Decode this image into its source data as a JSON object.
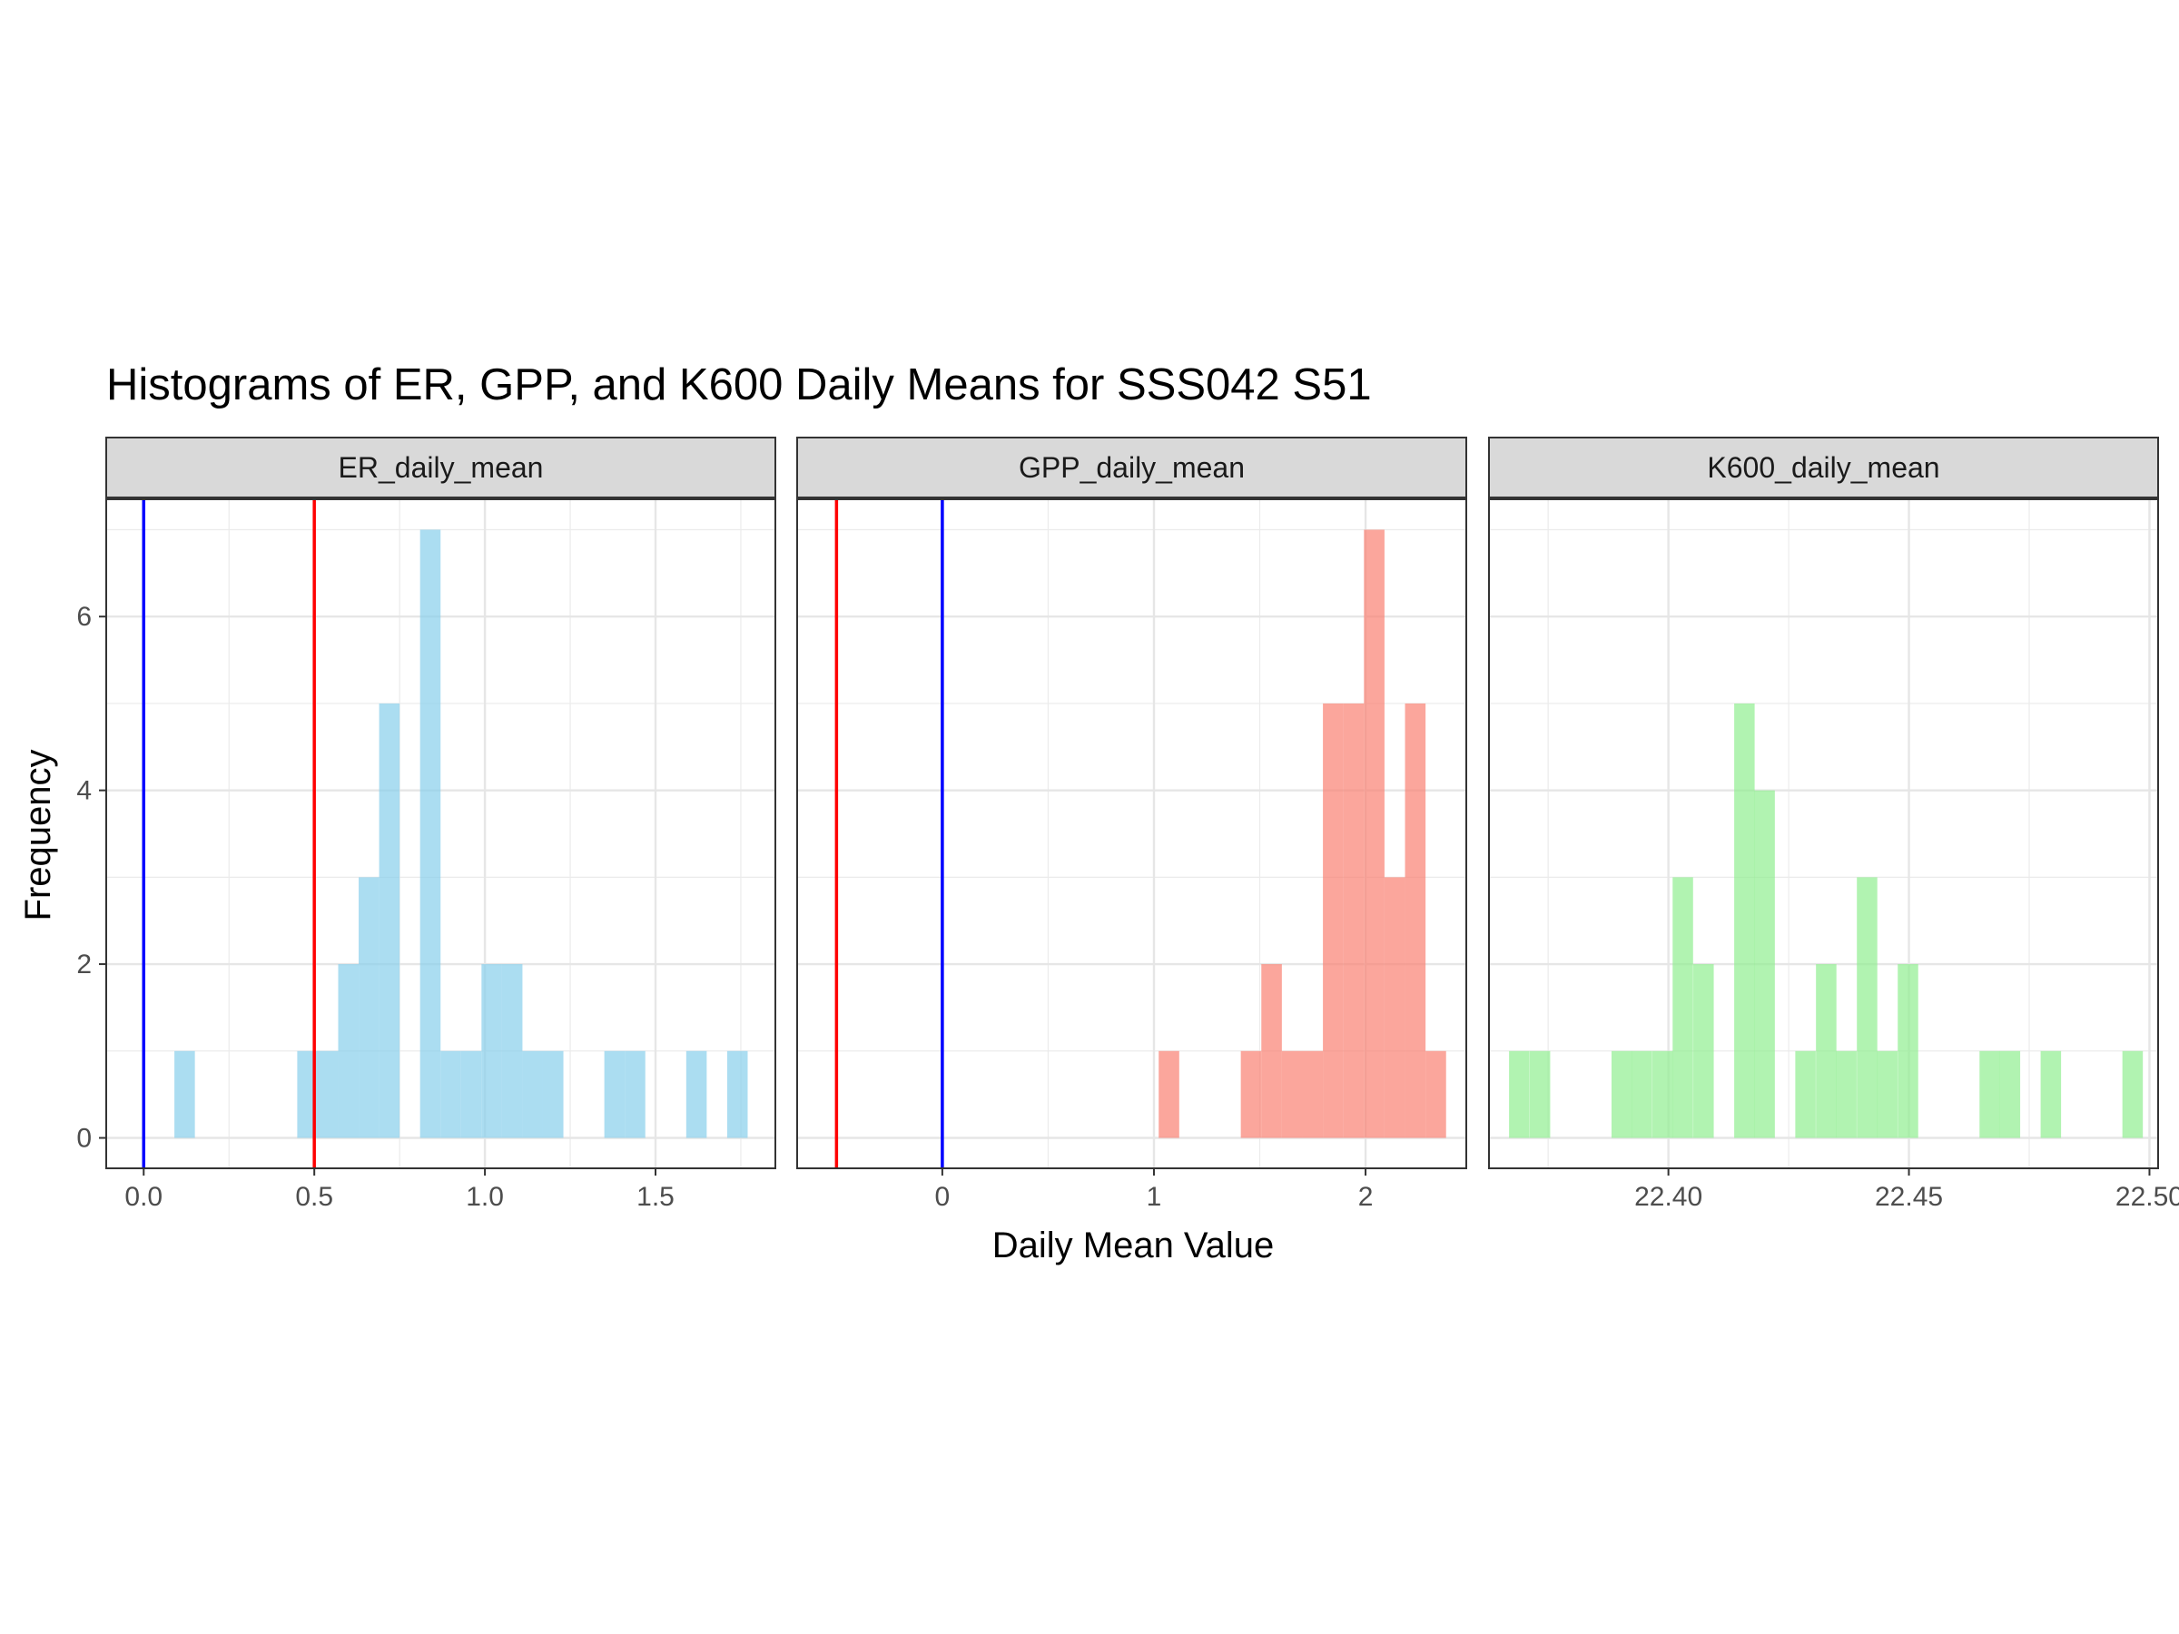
{
  "chart_data": {
    "type": "bar",
    "title": "Histograms of ER, GPP, and K600 Daily Means for SSS042 S51",
    "xlabel": "Daily Mean Value",
    "ylabel": "Frequency",
    "ylim": [
      -0.35,
      7.35
    ],
    "y_ticks": [
      0,
      2,
      4,
      6
    ],
    "grid": true,
    "panels": [
      {
        "label": "ER_daily_mean",
        "color": "#87CEEB",
        "xlim": [
          -0.1098,
          1.8512
        ],
        "x_ticks": [
          {
            "value": 0.0,
            "label": "0.0"
          },
          {
            "value": 0.5,
            "label": "0.5"
          },
          {
            "value": 1.0,
            "label": "1.0"
          },
          {
            "value": 1.5,
            "label": "1.5"
          }
        ],
        "bin_width": 0.06,
        "bins": [
          {
            "x": 0.12,
            "count": 1
          },
          {
            "x": 0.48,
            "count": 1
          },
          {
            "x": 0.54,
            "count": 1
          },
          {
            "x": 0.6,
            "count": 2
          },
          {
            "x": 0.66,
            "count": 3
          },
          {
            "x": 0.72,
            "count": 5
          },
          {
            "x": 0.84,
            "count": 7
          },
          {
            "x": 0.9,
            "count": 1
          },
          {
            "x": 0.96,
            "count": 1
          },
          {
            "x": 1.02,
            "count": 2
          },
          {
            "x": 1.08,
            "count": 2
          },
          {
            "x": 1.14,
            "count": 1
          },
          {
            "x": 1.2,
            "count": 1
          },
          {
            "x": 1.38,
            "count": 1
          },
          {
            "x": 1.44,
            "count": 1
          },
          {
            "x": 1.62,
            "count": 1
          },
          {
            "x": 1.74,
            "count": 1
          }
        ],
        "reference_lines": [
          {
            "x": 0.0,
            "color": "#0000FF"
          },
          {
            "x": 0.5,
            "color": "#FF0000"
          }
        ]
      },
      {
        "label": "GPP_daily_mean",
        "color": "#FA8072",
        "xlim": [
          -0.686,
          2.476
        ],
        "x_ticks": [
          {
            "value": 0,
            "label": "0"
          },
          {
            "value": 1,
            "label": "1"
          },
          {
            "value": 2,
            "label": "2"
          }
        ],
        "bin_width": 0.097,
        "bins": [
          {
            "x": 1.071,
            "count": 1
          },
          {
            "x": 1.459,
            "count": 1
          },
          {
            "x": 1.556,
            "count": 2
          },
          {
            "x": 1.653,
            "count": 1
          },
          {
            "x": 1.75,
            "count": 1
          },
          {
            "x": 1.847,
            "count": 5
          },
          {
            "x": 1.944,
            "count": 5
          },
          {
            "x": 2.041,
            "count": 7
          },
          {
            "x": 2.138,
            "count": 3
          },
          {
            "x": 2.235,
            "count": 5
          },
          {
            "x": 2.332,
            "count": 1
          }
        ],
        "reference_lines": [
          {
            "x": -0.5,
            "color": "#FF0000"
          },
          {
            "x": 0,
            "color": "#0000FF"
          }
        ]
      },
      {
        "label": "K600_daily_mean",
        "color": "#90EE90",
        "xlim": [
          22.3627,
          22.5018
        ],
        "x_ticks": [
          {
            "value": 22.4,
            "label": "22.40"
          },
          {
            "value": 22.45,
            "label": "22.45"
          },
          {
            "value": 22.5,
            "label": "22.50"
          }
        ],
        "bin_width": 0.00425,
        "bins": [
          {
            "x": 22.369,
            "count": 1
          },
          {
            "x": 22.3733,
            "count": 1
          },
          {
            "x": 22.3903,
            "count": 1
          },
          {
            "x": 22.3945,
            "count": 1
          },
          {
            "x": 22.3988,
            "count": 1
          },
          {
            "x": 22.403,
            "count": 3
          },
          {
            "x": 22.4073,
            "count": 2
          },
          {
            "x": 22.4158,
            "count": 5
          },
          {
            "x": 22.42,
            "count": 4
          },
          {
            "x": 22.4285,
            "count": 1
          },
          {
            "x": 22.4328,
            "count": 2
          },
          {
            "x": 22.437,
            "count": 1
          },
          {
            "x": 22.4413,
            "count": 3
          },
          {
            "x": 22.4455,
            "count": 1
          },
          {
            "x": 22.4498,
            "count": 2
          },
          {
            "x": 22.4668,
            "count": 1
          },
          {
            "x": 22.471,
            "count": 1
          },
          {
            "x": 22.4795,
            "count": 1
          },
          {
            "x": 22.4965,
            "count": 1
          }
        ],
        "reference_lines": []
      }
    ]
  }
}
